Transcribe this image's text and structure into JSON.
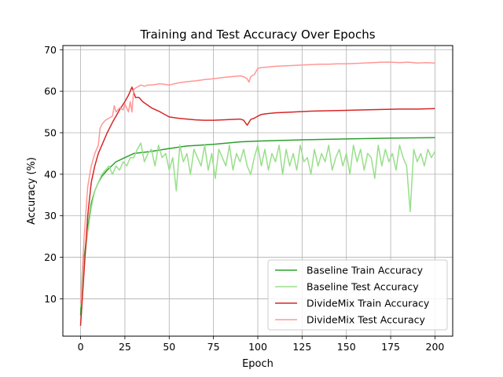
{
  "chart_data": {
    "type": "line",
    "title": "Training and Test Accuracy Over Epochs",
    "xlabel": "Epoch",
    "ylabel": "Accuracy (%)",
    "xlim": [
      -10,
      210
    ],
    "ylim": [
      1,
      71
    ],
    "xticks": [
      0,
      25,
      50,
      75,
      100,
      125,
      150,
      175,
      200
    ],
    "yticks": [
      10,
      20,
      30,
      40,
      50,
      60,
      70
    ],
    "grid": true,
    "legend_position": "bottom-right",
    "series": [
      {
        "name": "Baseline Train Accuracy",
        "color": "#2ca02c",
        "x": [
          0,
          2,
          4,
          6,
          8,
          10,
          12,
          15,
          20,
          25,
          30,
          40,
          50,
          60,
          75,
          90,
          100,
          125,
          150,
          175,
          200
        ],
        "y": [
          6,
          20,
          27,
          33,
          36,
          38,
          39.5,
          41,
          43,
          44,
          45,
          45.5,
          46.2,
          46.8,
          47.2,
          47.8,
          48,
          48.3,
          48.5,
          48.7,
          48.8
        ]
      },
      {
        "name": "Baseline Test Accuracy",
        "color": "#98df8a",
        "x": [
          0,
          2,
          4,
          6,
          8,
          10,
          12,
          14,
          16,
          18,
          20,
          22,
          24,
          26,
          28,
          30,
          32,
          34,
          36,
          38,
          40,
          42,
          44,
          46,
          48,
          50,
          52,
          54,
          56,
          58,
          60,
          62,
          64,
          66,
          68,
          70,
          72,
          74,
          76,
          78,
          80,
          82,
          84,
          86,
          88,
          90,
          92,
          94,
          96,
          98,
          100,
          102,
          104,
          106,
          108,
          110,
          112,
          114,
          116,
          118,
          120,
          122,
          124,
          126,
          128,
          130,
          132,
          134,
          136,
          138,
          140,
          142,
          144,
          146,
          148,
          150,
          152,
          154,
          156,
          158,
          160,
          162,
          164,
          166,
          168,
          170,
          172,
          174,
          176,
          178,
          180,
          182,
          184,
          186,
          188,
          190,
          192,
          194,
          196,
          198,
          200
        ],
        "y": [
          8,
          19,
          26,
          32,
          36,
          38,
          40,
          41,
          42,
          40,
          42,
          41,
          43,
          42,
          44,
          44,
          46,
          47.5,
          43,
          45,
          46,
          42,
          47,
          44,
          45,
          41,
          44,
          36,
          47,
          43,
          45,
          40,
          46,
          44,
          42,
          47,
          41,
          45,
          39,
          46,
          44,
          42,
          47,
          41,
          45,
          43,
          46,
          42,
          40,
          44,
          47,
          42,
          46,
          41,
          45,
          43,
          47,
          40,
          46,
          42,
          45,
          41,
          47,
          43,
          44,
          40,
          46,
          42,
          45,
          43,
          47,
          41,
          44,
          46,
          42,
          45,
          40,
          47,
          43,
          46,
          41,
          45,
          44,
          39,
          47,
          42,
          46,
          43,
          45,
          41,
          47,
          44,
          42,
          31,
          46,
          43,
          45,
          42,
          46,
          44,
          45.5
        ]
      },
      {
        "name": "DivideMix Train Accuracy",
        "color": "#d62728",
        "x": [
          0,
          2,
          4,
          6,
          8,
          10,
          12,
          15,
          18,
          20,
          22,
          25,
          27,
          29,
          31,
          33,
          35,
          40,
          45,
          50,
          55,
          60,
          65,
          70,
          75,
          80,
          85,
          90,
          92,
          94,
          96,
          98,
          100,
          102,
          105,
          110,
          120,
          130,
          140,
          150,
          160,
          170,
          180,
          190,
          200
        ],
        "y": [
          3.5,
          17,
          30,
          38,
          42,
          45,
          47,
          50,
          52.5,
          54,
          55.5,
          57.5,
          59,
          61,
          58.5,
          58.5,
          57.5,
          56,
          55,
          53.8,
          53.5,
          53.3,
          53.1,
          53,
          53,
          53.1,
          53.2,
          53.3,
          53,
          51.8,
          53.2,
          53.5,
          54,
          54.4,
          54.6,
          54.8,
          55,
          55.2,
          55.3,
          55.4,
          55.5,
          55.6,
          55.7,
          55.7,
          55.8
        ]
      },
      {
        "name": "DivideMix Test Accuracy",
        "color": "#ff9896",
        "x": [
          0,
          2,
          4,
          6,
          8,
          10,
          11,
          12,
          14,
          16,
          18,
          19,
          20,
          22,
          24,
          25,
          26,
          27,
          28,
          29,
          30,
          32,
          34,
          36,
          38,
          40,
          45,
          50,
          55,
          60,
          65,
          70,
          75,
          80,
          85,
          90,
          92,
          94,
          95,
          96,
          98,
          100,
          102,
          105,
          110,
          115,
          120,
          125,
          130,
          135,
          140,
          145,
          150,
          155,
          160,
          165,
          170,
          175,
          180,
          185,
          190,
          195,
          200
        ],
        "y": [
          9,
          25,
          37,
          42,
          45,
          47,
          51,
          52,
          53,
          53.5,
          54,
          56.5,
          55,
          56,
          55.5,
          57,
          56,
          55,
          57.5,
          55,
          60.5,
          61,
          61.5,
          61.2,
          61.5,
          61.5,
          61.8,
          61.5,
          62,
          62.3,
          62.5,
          62.8,
          63,
          63.3,
          63.5,
          63.7,
          63.5,
          63,
          62.2,
          63.5,
          64,
          65.5,
          65.7,
          65.8,
          66,
          66.1,
          66.2,
          66.3,
          66.4,
          66.5,
          66.5,
          66.6,
          66.6,
          66.7,
          66.8,
          66.9,
          67,
          67,
          66.9,
          67,
          66.8,
          66.9,
          66.8
        ]
      }
    ]
  }
}
